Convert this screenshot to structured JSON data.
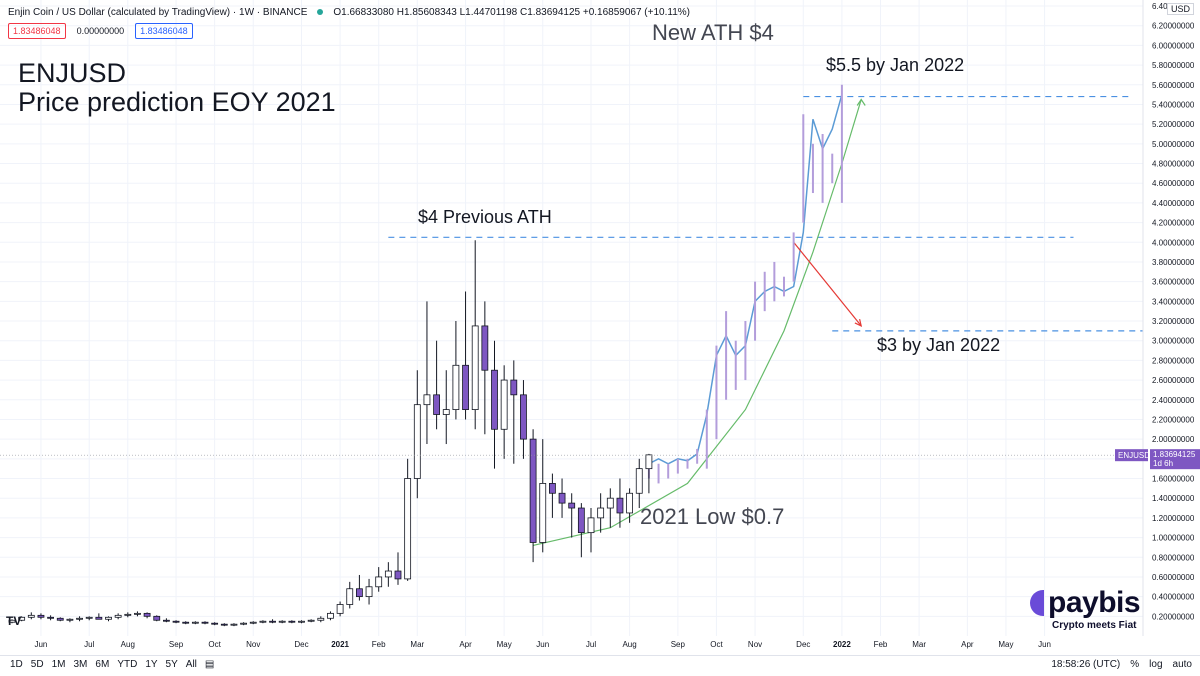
{
  "header": {
    "symbol_title": "Enjin Coin / US Dollar (calculated by TradingView) · 1W · BINANCE",
    "ohlc": "O1.66833080  H1.85608343  L1.44701198  C1.83694125  +0.16859067 (+10.11%)",
    "pills": [
      "1.83486048",
      "0.00000000",
      "1.83486048"
    ],
    "currency": "USD"
  },
  "annotations": {
    "title_line1": "ENJUSD",
    "title_line2": "Price prediction EOY 2021",
    "new_ath": "New ATH $4",
    "target_high": "$5.5 by Jan 2022",
    "previous_ath": "$4 Previous ATH",
    "target_low": "$3 by Jan 2022",
    "low_2021": "2021 Low $0.7"
  },
  "price_label": {
    "symbol": "ENJUSD",
    "value": "1.83694125",
    "countdown": "1d 6h"
  },
  "bottom": {
    "ranges": [
      "1D",
      "5D",
      "1M",
      "3M",
      "6M",
      "YTD",
      "1Y",
      "5Y",
      "All"
    ],
    "time": "18:58:26 (UTC)",
    "pct": "%",
    "log": "log",
    "auto": "auto"
  },
  "logo": {
    "name": "paybis",
    "tagline": "Crypto meets Fiat"
  },
  "colors": {
    "bull": "#ffffff",
    "bear": "#7e57c2",
    "candle_border": "#131722",
    "projection": "#b39ddb",
    "blue_line": "#5b9bd5",
    "green_curve": "#66bb6a",
    "red_arrow": "#e53935",
    "dash_line": "#4a90e2"
  },
  "chart_data": {
    "type": "candlestick",
    "interval": "1W",
    "ylim": [
      0,
      6.4
    ],
    "y_ticks": [
      "0.20000000",
      "0.40000000",
      "0.60000000",
      "0.80000000",
      "1.00000000",
      "1.20000000",
      "1.40000000",
      "1.60000000",
      "1.80000000",
      "2.00000000",
      "2.20000000",
      "2.40000000",
      "2.60000000",
      "2.80000000",
      "3.00000000",
      "3.20000000",
      "3.40000000",
      "3.60000000",
      "3.80000000",
      "4.00000000",
      "4.20000000",
      "4.40000000",
      "4.60000000",
      "4.80000000",
      "5.00000000",
      "5.20000000",
      "5.40000000",
      "5.60000000",
      "5.80000000",
      "6.00000000",
      "6.20000000",
      "6.40000000"
    ],
    "x_ticks": [
      {
        "label": "Jun",
        "i": 3
      },
      {
        "label": "Jul",
        "i": 8
      },
      {
        "label": "Aug",
        "i": 12
      },
      {
        "label": "Sep",
        "i": 17
      },
      {
        "label": "Oct",
        "i": 21
      },
      {
        "label": "Nov",
        "i": 25
      },
      {
        "label": "Dec",
        "i": 30
      },
      {
        "label": "2021",
        "i": 34
      },
      {
        "label": "Feb",
        "i": 38
      },
      {
        "label": "Mar",
        "i": 42
      },
      {
        "label": "Apr",
        "i": 47
      },
      {
        "label": "May",
        "i": 51
      },
      {
        "label": "Jun",
        "i": 55
      },
      {
        "label": "Jul",
        "i": 60
      },
      {
        "label": "Aug",
        "i": 64
      },
      {
        "label": "Sep",
        "i": 69
      },
      {
        "label": "Oct",
        "i": 73
      },
      {
        "label": "Nov",
        "i": 77
      },
      {
        "label": "Dec",
        "i": 82
      },
      {
        "label": "2022",
        "i": 86
      },
      {
        "label": "Feb",
        "i": 90
      },
      {
        "label": "Mar",
        "i": 94
      },
      {
        "label": "Apr",
        "i": 99
      },
      {
        "label": "May",
        "i": 103
      },
      {
        "label": "Jun",
        "i": 107
      }
    ],
    "candles": [
      [
        0.14,
        0.17,
        0.13,
        0.16
      ],
      [
        0.16,
        0.2,
        0.15,
        0.19
      ],
      [
        0.19,
        0.24,
        0.17,
        0.21
      ],
      [
        0.21,
        0.23,
        0.17,
        0.19
      ],
      [
        0.19,
        0.21,
        0.16,
        0.18
      ],
      [
        0.18,
        0.19,
        0.15,
        0.16
      ],
      [
        0.16,
        0.18,
        0.14,
        0.17
      ],
      [
        0.17,
        0.2,
        0.15,
        0.18
      ],
      [
        0.18,
        0.2,
        0.16,
        0.19
      ],
      [
        0.19,
        0.23,
        0.17,
        0.17
      ],
      [
        0.17,
        0.2,
        0.15,
        0.19
      ],
      [
        0.19,
        0.23,
        0.17,
        0.21
      ],
      [
        0.21,
        0.24,
        0.19,
        0.22
      ],
      [
        0.22,
        0.25,
        0.2,
        0.23
      ],
      [
        0.23,
        0.24,
        0.18,
        0.2
      ],
      [
        0.2,
        0.21,
        0.15,
        0.16
      ],
      [
        0.16,
        0.18,
        0.14,
        0.15
      ],
      [
        0.15,
        0.16,
        0.13,
        0.14
      ],
      [
        0.14,
        0.15,
        0.12,
        0.13
      ],
      [
        0.13,
        0.15,
        0.12,
        0.14
      ],
      [
        0.14,
        0.15,
        0.12,
        0.13
      ],
      [
        0.13,
        0.14,
        0.11,
        0.12
      ],
      [
        0.12,
        0.13,
        0.1,
        0.11
      ],
      [
        0.11,
        0.13,
        0.1,
        0.12
      ],
      [
        0.12,
        0.14,
        0.11,
        0.13
      ],
      [
        0.13,
        0.15,
        0.12,
        0.14
      ],
      [
        0.14,
        0.16,
        0.13,
        0.15
      ],
      [
        0.15,
        0.17,
        0.13,
        0.14
      ],
      [
        0.14,
        0.16,
        0.13,
        0.15
      ],
      [
        0.15,
        0.16,
        0.13,
        0.14
      ],
      [
        0.14,
        0.16,
        0.13,
        0.15
      ],
      [
        0.15,
        0.17,
        0.14,
        0.16
      ],
      [
        0.16,
        0.2,
        0.14,
        0.18
      ],
      [
        0.18,
        0.25,
        0.16,
        0.23
      ],
      [
        0.23,
        0.35,
        0.2,
        0.32
      ],
      [
        0.32,
        0.55,
        0.28,
        0.48
      ],
      [
        0.48,
        0.62,
        0.36,
        0.4
      ],
      [
        0.4,
        0.58,
        0.32,
        0.5
      ],
      [
        0.5,
        0.7,
        0.45,
        0.6
      ],
      [
        0.6,
        0.75,
        0.5,
        0.66
      ],
      [
        0.66,
        0.85,
        0.52,
        0.58
      ],
      [
        0.58,
        1.8,
        0.56,
        1.6
      ],
      [
        1.6,
        2.7,
        1.4,
        2.35
      ],
      [
        2.35,
        3.4,
        1.95,
        2.45
      ],
      [
        2.45,
        3.0,
        2.1,
        2.25
      ],
      [
        2.25,
        2.7,
        1.95,
        2.3
      ],
      [
        2.3,
        3.2,
        2.2,
        2.75
      ],
      [
        2.75,
        3.5,
        2.2,
        2.3
      ],
      [
        2.3,
        4.02,
        2.1,
        3.15
      ],
      [
        3.15,
        3.4,
        2.05,
        2.7
      ],
      [
        2.7,
        3.0,
        1.7,
        2.1
      ],
      [
        2.1,
        2.75,
        1.8,
        2.6
      ],
      [
        2.6,
        2.8,
        1.75,
        2.45
      ],
      [
        2.45,
        2.6,
        1.8,
        2.0
      ],
      [
        2.0,
        2.1,
        0.75,
        0.95
      ],
      [
        0.95,
        2.0,
        0.85,
        1.55
      ],
      [
        1.55,
        1.65,
        1.2,
        1.45
      ],
      [
        1.45,
        1.6,
        1.2,
        1.35
      ],
      [
        1.35,
        1.45,
        1.0,
        1.3
      ],
      [
        1.3,
        1.35,
        0.8,
        1.05
      ],
      [
        1.05,
        1.3,
        0.85,
        1.2
      ],
      [
        1.2,
        1.45,
        1.05,
        1.3
      ],
      [
        1.3,
        1.5,
        1.1,
        1.4
      ],
      [
        1.4,
        1.6,
        1.1,
        1.25
      ],
      [
        1.25,
        1.5,
        1.15,
        1.45
      ],
      [
        1.45,
        1.8,
        1.3,
        1.7
      ],
      [
        1.7,
        1.85,
        1.45,
        1.84
      ]
    ],
    "projection_bars": [
      [
        66,
        1.75,
        1.6
      ],
      [
        67,
        1.75,
        1.55
      ],
      [
        68,
        1.75,
        1.6
      ],
      [
        69,
        1.8,
        1.65
      ],
      [
        70,
        1.8,
        1.7
      ],
      [
        71,
        1.9,
        1.75
      ],
      [
        72,
        2.3,
        1.7
      ],
      [
        73,
        2.95,
        2.0
      ],
      [
        74,
        3.3,
        2.4
      ],
      [
        75,
        3.0,
        2.5
      ],
      [
        76,
        3.2,
        2.6
      ],
      [
        77,
        3.6,
        3.0
      ],
      [
        78,
        3.7,
        3.3
      ],
      [
        79,
        3.8,
        3.4
      ],
      [
        80,
        3.65,
        3.45
      ],
      [
        81,
        4.1,
        3.6
      ],
      [
        82,
        5.3,
        4.2
      ],
      [
        83,
        5.0,
        4.5
      ],
      [
        84,
        5.1,
        4.4
      ],
      [
        85,
        4.9,
        4.6
      ],
      [
        86,
        5.6,
        4.4
      ]
    ],
    "blue_path": [
      [
        66,
        1.75
      ],
      [
        67,
        1.8
      ],
      [
        68,
        1.75
      ],
      [
        69,
        1.8
      ],
      [
        70,
        1.78
      ],
      [
        71,
        1.85
      ],
      [
        72,
        2.25
      ],
      [
        73,
        2.85
      ],
      [
        74,
        3.05
      ],
      [
        75,
        2.85
      ],
      [
        76,
        2.95
      ],
      [
        77,
        3.4
      ],
      [
        78,
        3.5
      ],
      [
        79,
        3.55
      ],
      [
        80,
        3.5
      ],
      [
        81,
        3.55
      ],
      [
        82,
        4.1
      ],
      [
        83,
        5.25
      ],
      [
        84,
        4.95
      ],
      [
        85,
        5.15
      ],
      [
        86,
        5.5
      ]
    ],
    "green_curve": [
      [
        54,
        0.92
      ],
      [
        62,
        1.1
      ],
      [
        70,
        1.55
      ],
      [
        76,
        2.3
      ],
      [
        80,
        3.1
      ],
      [
        83,
        3.9
      ],
      [
        86,
        4.8
      ],
      [
        88,
        5.45
      ]
    ],
    "red_arrow": [
      [
        81,
        4.0
      ],
      [
        88,
        3.15
      ]
    ],
    "levels": [
      {
        "name": "previous_ath",
        "y": 4.05,
        "from": 39,
        "to": 110
      },
      {
        "name": "target_high",
        "y": 5.48,
        "from": 82,
        "to": 116
      },
      {
        "name": "target_low",
        "y": 3.1,
        "from": 85,
        "to": 126
      }
    ],
    "last_price": 1.83694125
  }
}
